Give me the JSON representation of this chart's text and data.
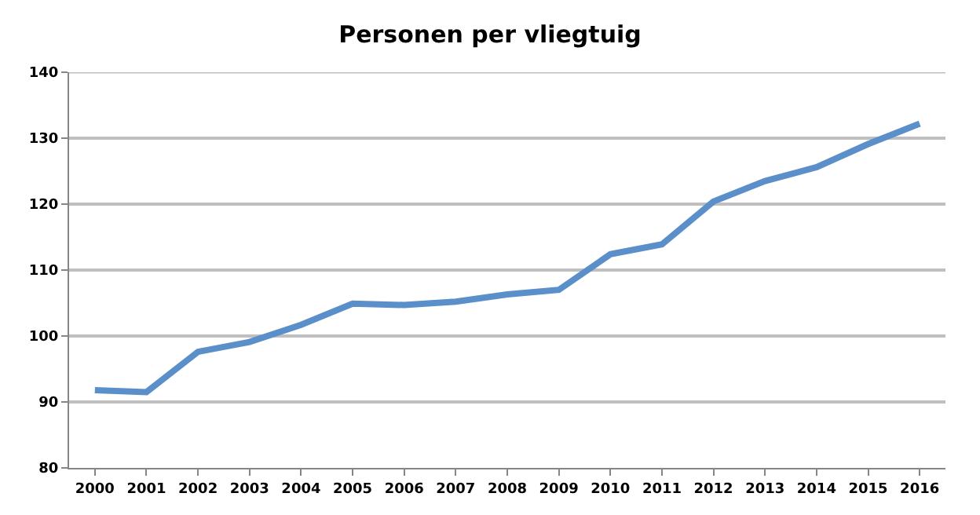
{
  "chart_data": {
    "type": "line",
    "title": "Personen per vliegtuig",
    "categories": [
      "2000",
      "2001",
      "2002",
      "2003",
      "2004",
      "2005",
      "2006",
      "2007",
      "2008",
      "2009",
      "2010",
      "2011",
      "2012",
      "2013",
      "2014",
      "2015",
      "2016"
    ],
    "series": [
      {
        "color": "#5b8fc9",
        "values": [
          91.8,
          91.5,
          97.6,
          99.1,
          101.7,
          104.9,
          104.7,
          105.2,
          106.3,
          107.0,
          112.4,
          113.9,
          120.4,
          123.5,
          125.6,
          129.1,
          132.2
        ]
      }
    ],
    "ylim": [
      80,
      140
    ],
    "yticks": [
      80,
      90,
      100,
      110,
      120,
      130,
      140
    ],
    "grid": "y",
    "marker": "none",
    "line_style": "solid"
  }
}
